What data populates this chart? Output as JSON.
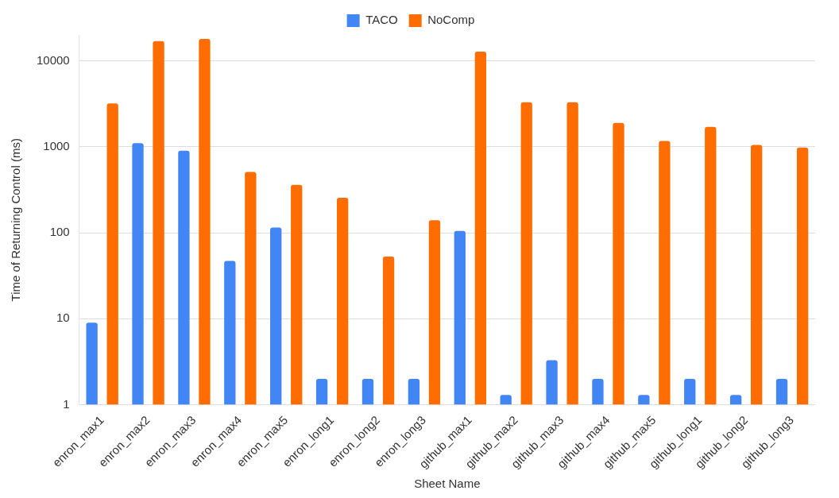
{
  "chart_data": {
    "type": "bar",
    "xlabel": "Sheet Name",
    "ylabel": "Time of Returning Control (ms)",
    "categories": [
      "enron_max1",
      "enron_max2",
      "enron_max3",
      "enron_max4",
      "enron_max5",
      "enron_long1",
      "enron_long2",
      "enron_long3",
      "github_max1",
      "github_max2",
      "github_max3",
      "github_max4",
      "github_max5",
      "github_long1",
      "github_long2",
      "github_long3"
    ],
    "series": [
      {
        "name": "TACO",
        "color": "#4285f4",
        "values": [
          9,
          1100,
          900,
          47,
          115,
          2,
          2,
          2,
          105,
          1.3,
          3.3,
          2,
          1.3,
          2,
          1.3,
          2
        ]
      },
      {
        "name": "NoComp",
        "color": "#ff6d01",
        "values": [
          3200,
          17000,
          18000,
          510,
          360,
          255,
          53,
          140,
          12800,
          3300,
          3300,
          1900,
          1170,
          1700,
          1050,
          980
        ]
      }
    ],
    "log": "y",
    "ylim": [
      1,
      20000
    ],
    "yticks": [
      1,
      10,
      100,
      1000,
      10000
    ],
    "grid": "y",
    "legend": "top"
  }
}
